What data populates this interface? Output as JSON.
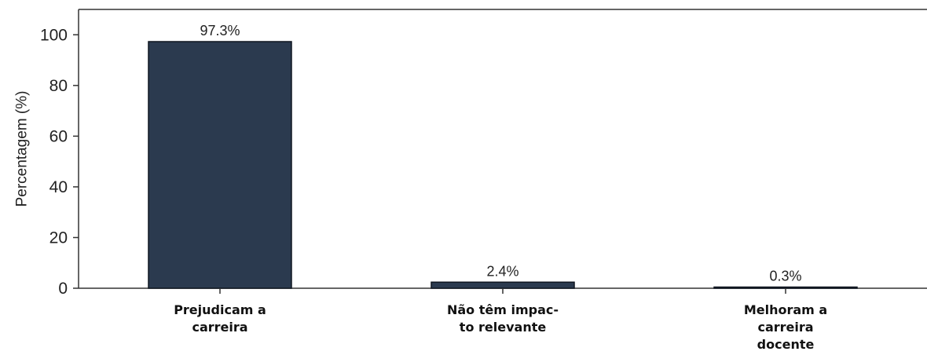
{
  "chart_data": {
    "type": "bar",
    "title": "",
    "xlabel": "",
    "ylabel": "Percentagem (%)",
    "ylim": [
      0,
      110
    ],
    "yticks": [
      0,
      20,
      40,
      60,
      80,
      100
    ],
    "grid": false,
    "legend": "none",
    "categories": [
      [
        "Prejudicam a",
        "carreira"
      ],
      [
        "Não têm impac-",
        "to relevante"
      ],
      [
        "Melhoram a",
        "carreira",
        "docente"
      ]
    ],
    "values": [
      97.3,
      2.4,
      0.3
    ],
    "data_labels": [
      "97.3%",
      "2.4%",
      "0.3%"
    ],
    "colors": {
      "bar": "#2b3a4f",
      "bar_edge": "#0f1620",
      "axis": "#333333"
    }
  }
}
